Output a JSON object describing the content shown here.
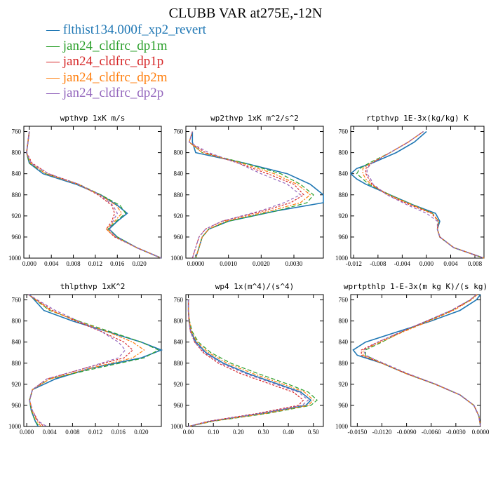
{
  "title": "CLUBB VAR at275E,-12N",
  "legend": [
    {
      "name": "flthist134.000f_xp2_revert",
      "color": "#1f77b4"
    },
    {
      "name": "jan24_cldfrc_dp1m",
      "color": "#2ca02c"
    },
    {
      "name": "jan24_cldfrc_dp1p",
      "color": "#d62728"
    },
    {
      "name": "jan24_cldfrc_dp2m",
      "color": "#ff7f0e"
    },
    {
      "name": "jan24_cldfrc_dp2p",
      "color": "#9467bd"
    }
  ],
  "chart_data": [
    {
      "type": "line",
      "title": "wpthvp  1xK m/s",
      "xlim": [
        -0.001,
        0.024
      ],
      "ylim": [
        750,
        1000
      ],
      "xticks": [
        0.0,
        0.004,
        0.008,
        0.012,
        0.016,
        0.02
      ],
      "xtick_labels": [
        "0.000",
        "0.004",
        "0.008",
        "0.012",
        "0.016",
        "0.020"
      ],
      "yticks": [
        760,
        800,
        840,
        880,
        920,
        960,
        1000
      ],
      "ytick_labels": [
        "760",
        "800",
        "840",
        "880",
        "920",
        "960",
        "1000"
      ],
      "y": [
        760,
        800,
        820,
        840,
        860,
        880,
        900,
        915,
        930,
        945,
        960,
        980,
        1000
      ],
      "series": [
        {
          "name": "flthist134.000f_xp2_revert",
          "x": [
            0.0,
            -0.0005,
            0.0,
            0.0025,
            0.0085,
            0.013,
            0.016,
            0.0178,
            0.016,
            0.0145,
            0.016,
            0.0195,
            0.024
          ]
        },
        {
          "name": "jan24_cldfrc_dp1m",
          "x": [
            0.0,
            -0.0005,
            0.0,
            0.003,
            0.009,
            0.013,
            0.0165,
            0.0175,
            0.0158,
            0.0143,
            0.016,
            0.0195,
            0.024
          ]
        },
        {
          "name": "jan24_cldfrc_dp1p",
          "x": [
            0.0,
            -0.0005,
            0.0005,
            0.0035,
            0.009,
            0.0125,
            0.015,
            0.0155,
            0.015,
            0.014,
            0.0155,
            0.0195,
            0.024
          ]
        },
        {
          "name": "jan24_cldfrc_dp2m",
          "x": [
            0.0,
            -0.0005,
            0.0002,
            0.003,
            0.0088,
            0.0128,
            0.0158,
            0.0168,
            0.0155,
            0.014,
            0.0157,
            0.0195,
            0.024
          ]
        },
        {
          "name": "jan24_cldfrc_dp2p",
          "x": [
            0.0,
            -0.0005,
            0.0003,
            0.0035,
            0.009,
            0.0128,
            0.0152,
            0.016,
            0.0152,
            0.0145,
            0.0157,
            0.0195,
            0.024
          ]
        }
      ]
    },
    {
      "type": "line",
      "title": "wp2thvp  1xK m^2/s^2",
      "xlim": [
        -0.0003,
        0.0039
      ],
      "ylim": [
        750,
        1000
      ],
      "xticks": [
        0.0,
        0.001,
        0.002,
        0.003
      ],
      "xtick_labels": [
        "0.0000",
        "0.0010",
        "0.0020",
        "0.0030"
      ],
      "yticks": [
        760,
        800,
        840,
        880,
        920,
        960,
        1000
      ],
      "ytick_labels": [
        "760",
        "800",
        "840",
        "880",
        "920",
        "960",
        "1000"
      ],
      "y": [
        760,
        780,
        800,
        820,
        840,
        860,
        880,
        895,
        910,
        930,
        945,
        960,
        980,
        1000
      ],
      "series": [
        {
          "name": "flthist134.000f_xp2_revert",
          "x": [
            -0.0001,
            -0.0001,
            0.0,
            0.0015,
            0.0028,
            0.0035,
            0.0039,
            0.0039,
            0.0025,
            0.001,
            0.0004,
            0.0002,
            0.0001,
            0.0
          ]
        },
        {
          "name": "jan24_cldfrc_dp1m",
          "x": [
            -0.0001,
            -0.0002,
            0.0002,
            0.0015,
            0.0026,
            0.0032,
            0.0036,
            0.0034,
            0.0025,
            0.001,
            0.0004,
            0.0002,
            0.0001,
            0.0
          ]
        },
        {
          "name": "jan24_cldfrc_dp1p",
          "x": [
            -0.0001,
            -0.0002,
            0.0003,
            0.0013,
            0.0022,
            0.003,
            0.0033,
            0.0029,
            0.0021,
            0.0008,
            0.0003,
            0.0001,
            0.0,
            -0.0001
          ]
        },
        {
          "name": "jan24_cldfrc_dp2m",
          "x": [
            -0.0001,
            -0.0002,
            0.0002,
            0.0014,
            0.0024,
            0.0031,
            0.0035,
            0.0032,
            0.0023,
            0.0009,
            0.0004,
            0.0002,
            0.0001,
            0.0
          ]
        },
        {
          "name": "jan24_cldfrc_dp2p",
          "x": [
            -0.0001,
            -0.0002,
            0.0004,
            0.0013,
            0.002,
            0.0028,
            0.0032,
            0.0027,
            0.002,
            0.0008,
            0.0003,
            0.0001,
            0.0,
            -0.0001
          ]
        }
      ]
    },
    {
      "type": "line",
      "title": "rtpthvp  1E-3x(kg/kg) K",
      "xlim": [
        -0.0125,
        0.0095
      ],
      "ylim": [
        750,
        1000
      ],
      "xticks": [
        -0.012,
        -0.008,
        -0.004,
        0.0,
        0.004,
        0.008
      ],
      "xtick_labels": [
        "-0.012",
        "-0.008",
        "-0.004",
        "0.000",
        "0.004",
        "0.008"
      ],
      "yticks": [
        760,
        800,
        840,
        880,
        920,
        960,
        1000
      ],
      "ytick_labels": [
        "760",
        "800",
        "840",
        "880",
        "920",
        "960",
        "1000"
      ],
      "y": [
        760,
        780,
        800,
        820,
        830,
        840,
        850,
        860,
        880,
        900,
        915,
        930,
        945,
        960,
        980,
        1000
      ],
      "series": [
        {
          "name": "flthist134.000f_xp2_revert",
          "x": [
            0.0,
            -0.002,
            -0.005,
            -0.009,
            -0.0115,
            -0.0125,
            -0.0115,
            -0.01,
            -0.006,
            -0.002,
            0.0015,
            0.0022,
            0.0018,
            0.0022,
            0.0045,
            0.0095
          ]
        },
        {
          "name": "jan24_cldfrc_dp1m",
          "x": [
            -0.0005,
            -0.003,
            -0.006,
            -0.0095,
            -0.011,
            -0.0115,
            -0.0105,
            -0.0095,
            -0.006,
            -0.002,
            0.001,
            0.002,
            0.0018,
            0.0022,
            0.0045,
            0.0095
          ]
        },
        {
          "name": "jan24_cldfrc_dp1p",
          "x": [
            -0.0005,
            -0.003,
            -0.006,
            -0.009,
            -0.01,
            -0.01,
            -0.0095,
            -0.009,
            -0.0065,
            -0.0025,
            0.0008,
            0.002,
            0.0018,
            0.0022,
            0.0045,
            0.0095
          ]
        },
        {
          "name": "jan24_cldfrc_dp2m",
          "x": [
            -0.0005,
            -0.003,
            -0.006,
            -0.0092,
            -0.0105,
            -0.0105,
            -0.01,
            -0.0092,
            -0.0062,
            -0.0022,
            0.001,
            0.002,
            0.0018,
            0.0022,
            0.0045,
            0.0095
          ]
        },
        {
          "name": "jan24_cldfrc_dp2p",
          "x": [
            -0.0005,
            -0.003,
            -0.006,
            -0.009,
            -0.0098,
            -0.0098,
            -0.0092,
            -0.0088,
            -0.0065,
            -0.003,
            0.0,
            0.0018,
            0.0018,
            0.0022,
            0.0045,
            0.0095
          ]
        }
      ]
    },
    {
      "type": "line",
      "title": "thlpthvp  1xK^2",
      "xlim": [
        -0.0005,
        0.0235
      ],
      "ylim": [
        750,
        1000
      ],
      "xticks": [
        0.0,
        0.004,
        0.008,
        0.012,
        0.016,
        0.02
      ],
      "xtick_labels": [
        "0.000",
        "0.004",
        "0.008",
        "0.012",
        "0.016",
        "0.020"
      ],
      "yticks": [
        760,
        800,
        840,
        880,
        920,
        960,
        1000
      ],
      "ytick_labels": [
        "760",
        "800",
        "840",
        "880",
        "920",
        "960",
        "1000"
      ],
      "y": [
        750,
        780,
        800,
        820,
        840,
        855,
        870,
        890,
        910,
        930,
        950,
        970,
        990,
        1000
      ],
      "series": [
        {
          "name": "flthist134.000f_xp2_revert",
          "x": [
            0.0005,
            0.003,
            0.008,
            0.014,
            0.02,
            0.0235,
            0.02,
            0.011,
            0.005,
            0.001,
            0.0005,
            0.0008,
            0.0015,
            0.002
          ]
        },
        {
          "name": "jan24_cldfrc_dp1m",
          "x": [
            0.0003,
            0.004,
            0.009,
            0.0145,
            0.02,
            0.023,
            0.0205,
            0.012,
            0.004,
            0.001,
            0.0005,
            0.0008,
            0.0015,
            0.0022
          ]
        },
        {
          "name": "jan24_cldfrc_dp1p",
          "x": [
            0.0003,
            0.0045,
            0.0085,
            0.013,
            0.017,
            0.0185,
            0.017,
            0.01,
            0.0035,
            0.001,
            0.0005,
            0.001,
            0.002,
            0.003
          ]
        },
        {
          "name": "jan24_cldfrc_dp2m",
          "x": [
            0.0003,
            0.0042,
            0.0088,
            0.014,
            0.0185,
            0.0205,
            0.0185,
            0.011,
            0.004,
            0.001,
            0.0005,
            0.0009,
            0.0018,
            0.0025
          ]
        },
        {
          "name": "jan24_cldfrc_dp2p",
          "x": [
            0.0003,
            0.005,
            0.009,
            0.013,
            0.016,
            0.0172,
            0.016,
            0.01,
            0.0035,
            0.001,
            0.0005,
            0.001,
            0.002,
            0.0035
          ]
        }
      ]
    },
    {
      "type": "line",
      "title": "wp4  1x(m^4)/(s^4)",
      "xlim": [
        -0.01,
        0.54
      ],
      "ylim": [
        750,
        1000
      ],
      "xticks": [
        0.0,
        0.1,
        0.2,
        0.3,
        0.4,
        0.5
      ],
      "xtick_labels": [
        "0.00",
        "0.10",
        "0.20",
        "0.30",
        "0.40",
        "0.50"
      ],
      "yticks": [
        760,
        800,
        840,
        880,
        920,
        960,
        1000
      ],
      "ytick_labels": [
        "760",
        "800",
        "840",
        "880",
        "920",
        "960",
        "1000"
      ],
      "y": [
        760,
        780,
        800,
        820,
        840,
        860,
        880,
        900,
        920,
        935,
        950,
        960,
        975,
        990,
        1000
      ],
      "series": [
        {
          "name": "flthist134.000f_xp2_revert",
          "x": [
            0.0,
            0.0,
            0.003,
            0.01,
            0.03,
            0.07,
            0.14,
            0.24,
            0.36,
            0.45,
            0.49,
            0.47,
            0.3,
            0.09,
            0.0
          ]
        },
        {
          "name": "jan24_cldfrc_dp1m",
          "x": [
            0.0,
            0.0,
            0.005,
            0.015,
            0.04,
            0.09,
            0.17,
            0.28,
            0.4,
            0.48,
            0.515,
            0.49,
            0.32,
            0.1,
            0.0
          ]
        },
        {
          "name": "jan24_cldfrc_dp1p",
          "x": [
            0.0,
            0.0,
            0.002,
            0.008,
            0.025,
            0.06,
            0.12,
            0.21,
            0.33,
            0.42,
            0.46,
            0.44,
            0.28,
            0.08,
            0.0
          ]
        },
        {
          "name": "jan24_cldfrc_dp2m",
          "x": [
            0.0,
            0.0,
            0.004,
            0.012,
            0.035,
            0.08,
            0.155,
            0.26,
            0.38,
            0.465,
            0.5,
            0.48,
            0.31,
            0.095,
            0.0
          ]
        },
        {
          "name": "jan24_cldfrc_dp2p",
          "x": [
            0.0,
            0.0,
            0.002,
            0.008,
            0.025,
            0.065,
            0.13,
            0.23,
            0.35,
            0.44,
            0.48,
            0.455,
            0.29,
            0.085,
            0.0
          ]
        }
      ]
    },
    {
      "type": "line",
      "title": "wprtpthlp  1-E-3x(m kg K)/(s kg)",
      "xlim": [
        -0.0158,
        0.0
      ],
      "ylim": [
        750,
        1000
      ],
      "xticks": [
        -0.015,
        -0.012,
        -0.009,
        -0.006,
        -0.003,
        0.0
      ],
      "xtick_labels": [
        "-0.0150",
        "-0.0120",
        "-0.0090",
        "-0.0060",
        "-0.0030",
        "0.0000"
      ],
      "yticks": [
        760,
        800,
        840,
        880,
        920,
        960,
        1000
      ],
      "ytick_labels": [
        "760",
        "800",
        "840",
        "880",
        "920",
        "960",
        "1000"
      ],
      "y": [
        750,
        760,
        780,
        800,
        820,
        840,
        855,
        865,
        880,
        900,
        920,
        940,
        960,
        980,
        1000
      ],
      "series": [
        {
          "name": "flthist134.000f_xp2_revert",
          "x": [
            0.0,
            -0.0005,
            -0.0025,
            -0.006,
            -0.01,
            -0.014,
            -0.0155,
            -0.015,
            -0.012,
            -0.009,
            -0.0055,
            -0.0025,
            -0.0008,
            -0.0002,
            0.0
          ]
        },
        {
          "name": "jan24_cldfrc_dp1m",
          "x": [
            -0.0005,
            -0.0012,
            -0.0035,
            -0.0065,
            -0.0095,
            -0.012,
            -0.014,
            -0.014,
            -0.012,
            -0.009,
            -0.0055,
            -0.0025,
            -0.0008,
            -0.0002,
            0.0
          ]
        },
        {
          "name": "jan24_cldfrc_dp1p",
          "x": [
            -0.0005,
            -0.0012,
            -0.0035,
            -0.0065,
            -0.0095,
            -0.0125,
            -0.0145,
            -0.0145,
            -0.012,
            -0.009,
            -0.0055,
            -0.0025,
            -0.0008,
            -0.0002,
            0.0
          ]
        },
        {
          "name": "jan24_cldfrc_dp2m",
          "x": [
            -0.0004,
            -0.0011,
            -0.0033,
            -0.0062,
            -0.0093,
            -0.0122,
            -0.0143,
            -0.0143,
            -0.012,
            -0.009,
            -0.0055,
            -0.0025,
            -0.0008,
            -0.0002,
            0.0
          ]
        },
        {
          "name": "jan24_cldfrc_dp2p",
          "x": [
            -0.0005,
            -0.0013,
            -0.0036,
            -0.0066,
            -0.0096,
            -0.0125,
            -0.0142,
            -0.014,
            -0.0118,
            -0.0088,
            -0.0054,
            -0.0025,
            -0.0008,
            -0.0002,
            0.0
          ]
        }
      ]
    }
  ]
}
